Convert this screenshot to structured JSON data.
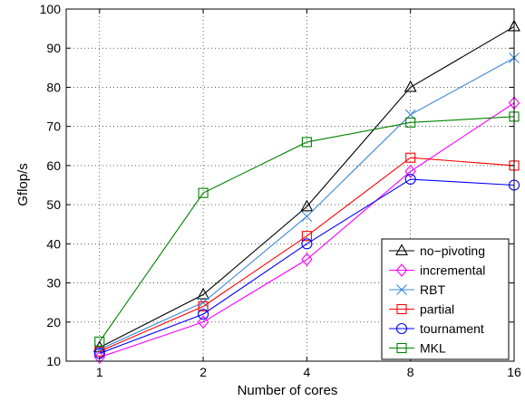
{
  "chart_data": {
    "type": "line",
    "title": "",
    "xlabel": "Number of cores",
    "ylabel": "Gflop/s",
    "x": [
      1,
      2,
      4,
      8,
      16
    ],
    "xticks": [
      "1",
      "2",
      "4",
      "8",
      "16"
    ],
    "xlim": [
      0.8,
      16
    ],
    "xscale": "log2",
    "ylim": [
      10,
      100
    ],
    "yticks": [
      "10",
      "20",
      "30",
      "40",
      "50",
      "60",
      "70",
      "80",
      "90",
      "100"
    ],
    "grid": true,
    "legend_position": "bottom-right",
    "series": [
      {
        "name": "no−pivoting",
        "marker": "triangle",
        "color": "#000000",
        "values": [
          13.5,
          27,
          49.5,
          80,
          95.5
        ]
      },
      {
        "name": "incremental",
        "marker": "diamond",
        "color": "#ff00ff",
        "values": [
          11,
          20,
          36,
          58.5,
          76
        ]
      },
      {
        "name": "RBT",
        "marker": "x",
        "color": "#3a87d6",
        "values": [
          13,
          25,
          47,
          73,
          87.5
        ]
      },
      {
        "name": "partial",
        "marker": "square",
        "color": "#ff0000",
        "values": [
          12.5,
          24,
          42,
          62,
          60
        ]
      },
      {
        "name": "tournament",
        "marker": "circle",
        "color": "#0000ff",
        "values": [
          12,
          22,
          40,
          56.5,
          55
        ]
      },
      {
        "name": "MKL",
        "marker": "square",
        "color": "#008000",
        "values": [
          15,
          53,
          66,
          71,
          72.5
        ]
      }
    ]
  }
}
